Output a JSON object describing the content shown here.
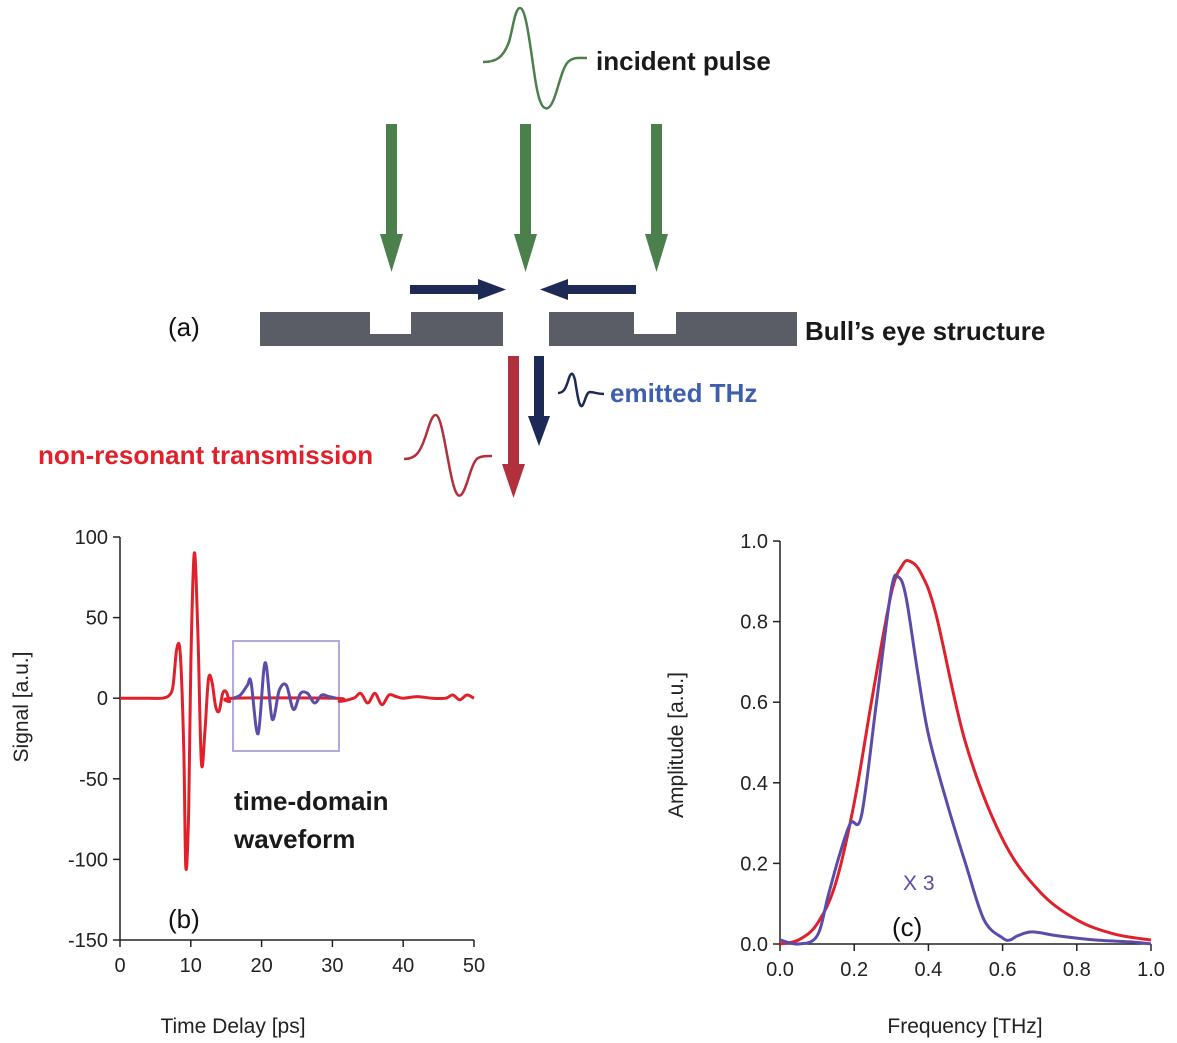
{
  "figure": {
    "labels": {
      "incident": "incident pulse",
      "structure": "Bull’s eye structure",
      "emitted": "emitted THz",
      "nonresonant": "non-resonant transmission",
      "tdw_line1": "time-domain",
      "tdw_line2": "waveform",
      "x3": "X 3"
    },
    "panels": {
      "a": "(a)",
      "b": "(b)",
      "c": "(c)"
    },
    "colors": {
      "green": "#4b7f4b",
      "navy": "#1c2a55",
      "red": "#e0212c",
      "darkred": "#b2303e",
      "blue": "#5a4ca8",
      "blue_label": "#3f5fae",
      "gray": "#5a5d66",
      "box": "#b7a8dc"
    }
  },
  "chart_data": [
    {
      "type": "line",
      "xlabel": "Time Delay [ps]",
      "ylabel": "Signal [a.u.]",
      "xlim": [
        0,
        50
      ],
      "ylim": [
        -150,
        100
      ],
      "xticks": [
        0,
        10,
        20,
        30,
        40,
        50
      ],
      "yticks": [
        100,
        50,
        0,
        -50,
        -100,
        -150
      ],
      "series": [
        {
          "color": "#e0212c",
          "x": [
            0,
            4,
            6,
            7,
            7.5,
            8,
            8.5,
            9,
            9.3,
            9.7,
            10,
            10.5,
            11,
            11.5,
            12,
            12.5,
            13,
            13.5,
            14,
            14.5,
            15,
            15.5,
            16,
            30.5,
            31,
            33,
            34,
            35,
            36,
            37,
            38,
            39,
            40,
            42,
            44,
            46,
            47,
            48,
            49,
            50
          ],
          "y": [
            0,
            0,
            0,
            2,
            8,
            30,
            28,
            -30,
            -105,
            -70,
            20,
            90,
            40,
            -40,
            -20,
            12,
            10,
            -5,
            -8,
            3,
            4,
            -2,
            0,
            0,
            -2,
            0,
            3,
            -3,
            3,
            -4,
            2,
            1,
            0,
            1,
            0,
            0,
            2,
            -1,
            2,
            0
          ]
        },
        {
          "color": "#5a4ca8",
          "x": [
            16,
            17,
            18,
            18.5,
            19.5,
            20.5,
            21.5,
            22.5,
            23.5,
            24.5,
            25.5,
            26.5,
            27.5,
            28.5,
            29.5,
            30.5
          ],
          "y": [
            0,
            2,
            8,
            10,
            -22,
            22,
            -13,
            5,
            8,
            -7,
            3,
            3,
            -3,
            2,
            1,
            0
          ]
        }
      ]
    },
    {
      "type": "line",
      "xlabel": "Frequency [THz]",
      "ylabel": "Amplitude [a.u.]",
      "xlim": [
        0,
        1
      ],
      "ylim": [
        0,
        1
      ],
      "xticks": [
        0.0,
        0.2,
        0.4,
        0.6,
        0.8,
        1.0
      ],
      "yticks": [
        1.0,
        0.8,
        0.6,
        0.4,
        0.2,
        0.0
      ],
      "series": [
        {
          "color": "#e0212c",
          "x": [
            0,
            0.05,
            0.1,
            0.15,
            0.2,
            0.25,
            0.3,
            0.33,
            0.35,
            0.38,
            0.42,
            0.5,
            0.6,
            0.7,
            0.8,
            0.9,
            1.0
          ],
          "y": [
            0,
            0.01,
            0.05,
            0.15,
            0.35,
            0.62,
            0.87,
            0.94,
            0.95,
            0.92,
            0.82,
            0.5,
            0.26,
            0.13,
            0.06,
            0.025,
            0.01
          ]
        },
        {
          "name": "X 3",
          "color": "#5a4ca8",
          "x": [
            0,
            0.05,
            0.1,
            0.13,
            0.16,
            0.19,
            0.22,
            0.26,
            0.3,
            0.32,
            0.34,
            0.37,
            0.4,
            0.45,
            0.5,
            0.55,
            0.6,
            0.62,
            0.64,
            0.68,
            0.75,
            0.85,
            0.95,
            1.0
          ],
          "y": [
            0.01,
            0.0,
            0.02,
            0.12,
            0.22,
            0.3,
            0.32,
            0.6,
            0.88,
            0.91,
            0.86,
            0.68,
            0.52,
            0.35,
            0.2,
            0.06,
            0.015,
            0.01,
            0.02,
            0.03,
            0.02,
            0.01,
            0.005,
            0.0
          ]
        }
      ]
    }
  ]
}
